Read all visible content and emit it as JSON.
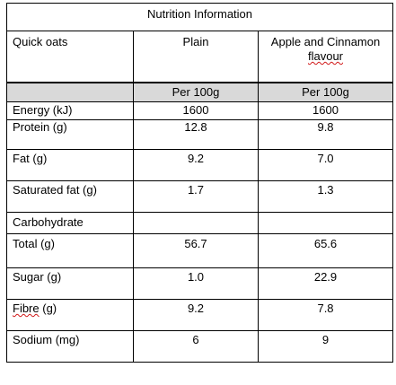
{
  "title": "Nutrition Information",
  "columns": {
    "product": "Quick oats",
    "plain": "Plain",
    "flavour_line1": "Apple and Cinnamon",
    "flavour_line2": "flavour"
  },
  "per_label": {
    "plain": "Per 100g",
    "flavour": "Per 100g"
  },
  "rows": [
    {
      "label": "Energy  (kJ)",
      "plain": "1600",
      "flavour": "1600"
    },
    {
      "label": "Protein (g)",
      "plain": "12.8",
      "flavour": "9.8"
    },
    {
      "label": "Fat (g)",
      "plain": "9.2",
      "flavour": "7.0"
    },
    {
      "label": "Saturated fat (g)",
      "plain": "1.7",
      "flavour": "1.3"
    },
    {
      "label": "Carbohydrate",
      "plain": "",
      "flavour": ""
    },
    {
      "label": "Total (g)",
      "plain": "56.7",
      "flavour": "65.6"
    },
    {
      "label": "Sugar (g)",
      "plain": "1.0",
      "flavour": "22.9"
    },
    {
      "label_prefix": "Fibre",
      "label_suffix": " (g)",
      "plain": "9.2",
      "flavour": "7.8"
    },
    {
      "label": "Sodium (mg)",
      "plain": "6",
      "flavour": "9"
    }
  ]
}
